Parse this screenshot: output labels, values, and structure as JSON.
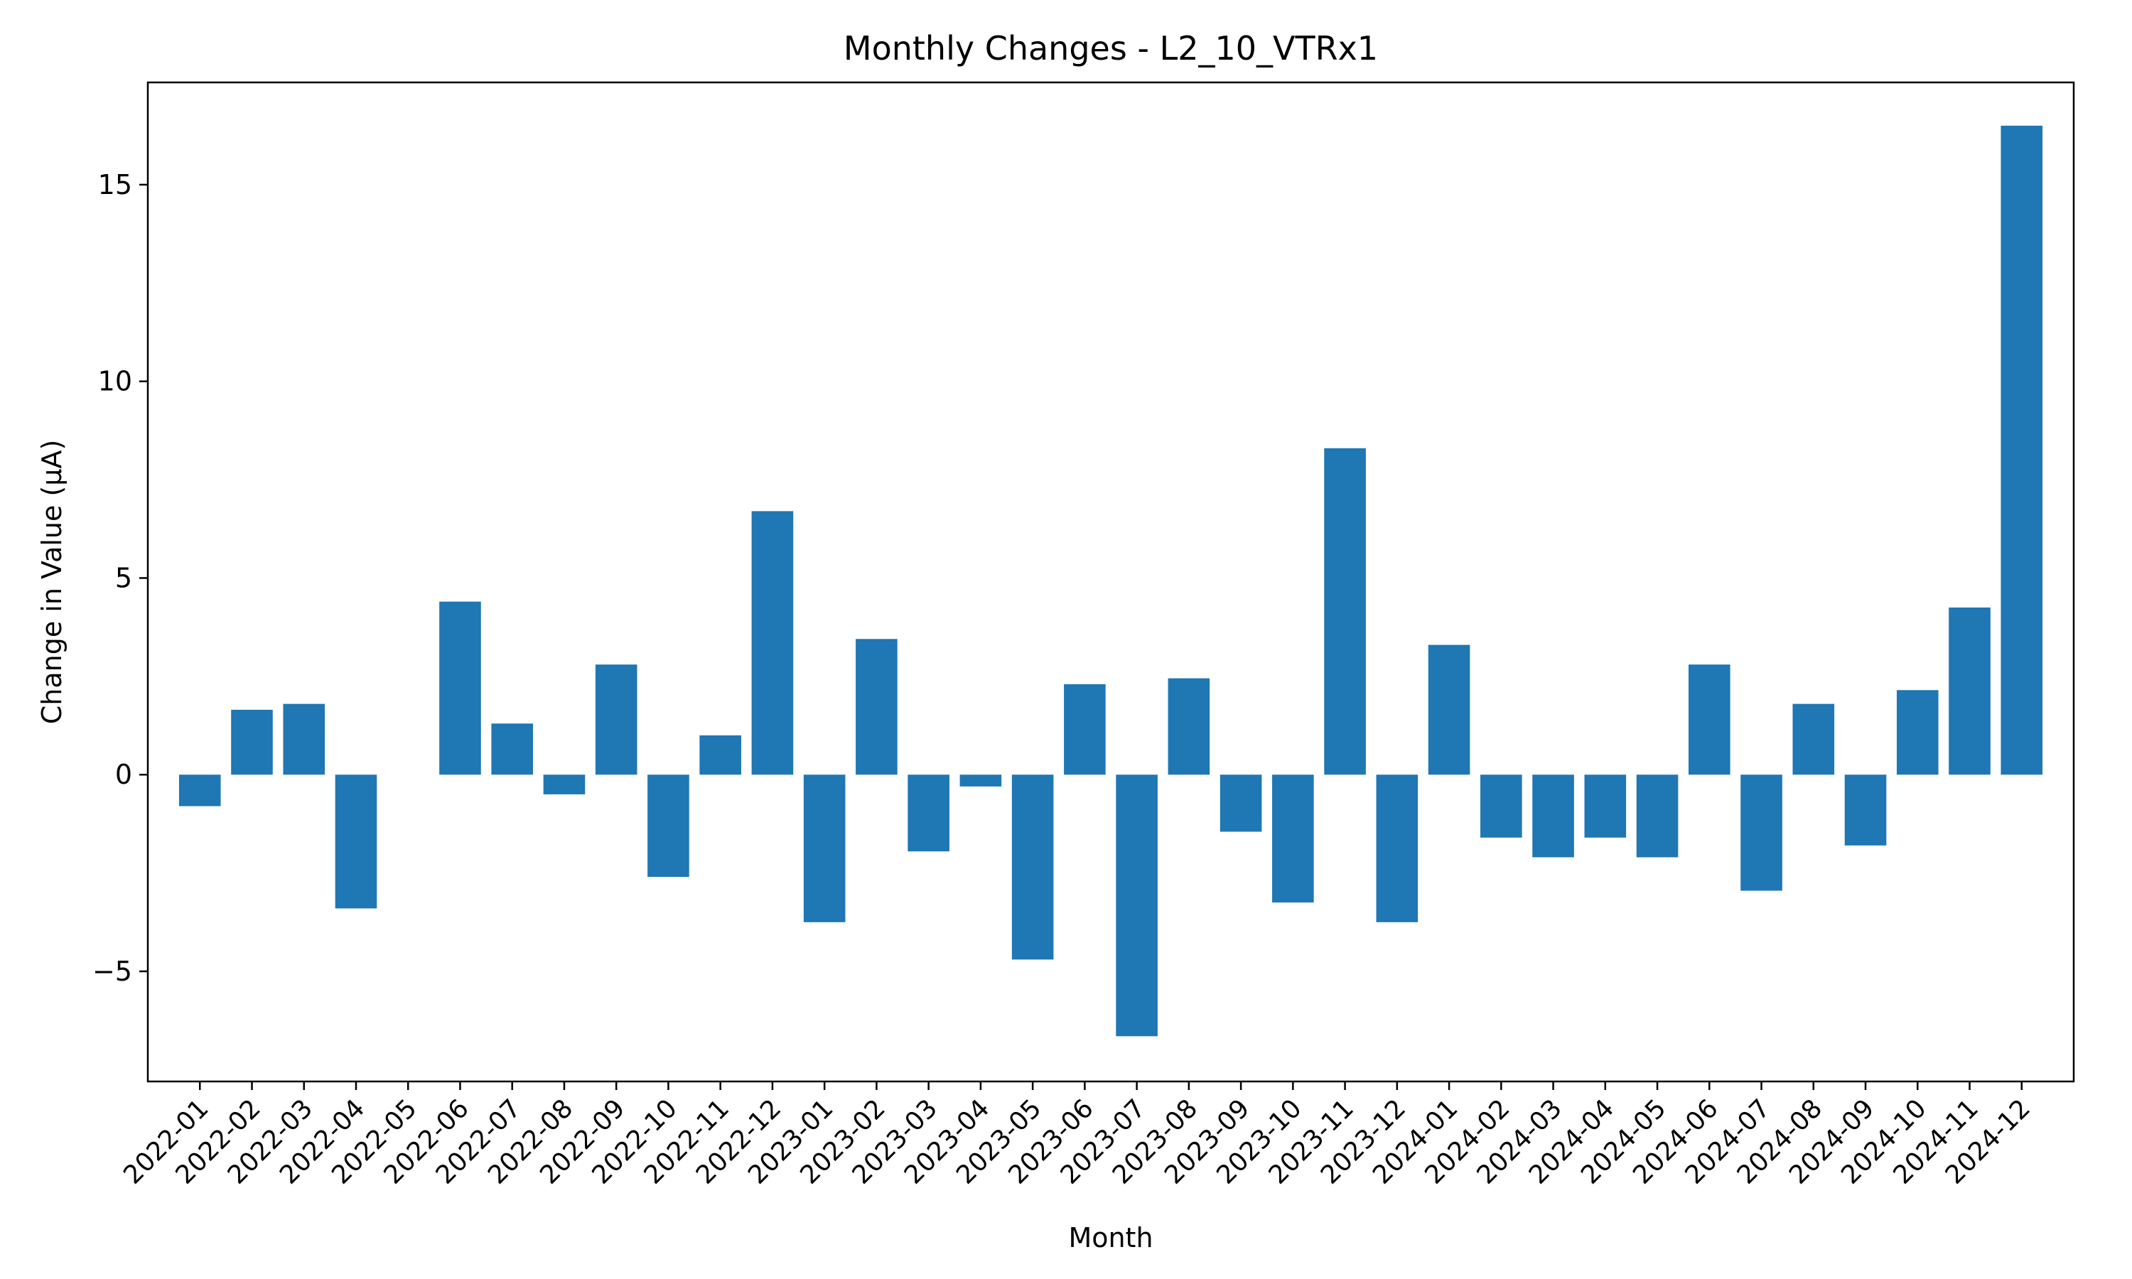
{
  "chart_data": {
    "type": "bar",
    "title": "Monthly Changes - L2_10_VTRx1",
    "xlabel": "Month",
    "ylabel": "Change in Value (μA)",
    "ylim": [
      -7.8,
      17.6
    ],
    "yticks": [
      -5,
      0,
      5,
      10,
      15
    ],
    "ytick_labels": [
      "−5",
      "0",
      "5",
      "10",
      "15"
    ],
    "grid": false,
    "legend": "none",
    "bar_color": "#1f77b4",
    "categories": [
      "2022-01",
      "2022-02",
      "2022-03",
      "2022-04",
      "2022-05",
      "2022-06",
      "2022-07",
      "2022-08",
      "2022-09",
      "2022-10",
      "2022-11",
      "2022-12",
      "2023-01",
      "2023-02",
      "2023-03",
      "2023-04",
      "2023-05",
      "2023-06",
      "2023-07",
      "2023-08",
      "2023-09",
      "2023-10",
      "2023-11",
      "2023-12",
      "2024-01",
      "2024-02",
      "2024-03",
      "2024-04",
      "2024-05",
      "2024-06",
      "2024-07",
      "2024-08",
      "2024-09",
      "2024-10",
      "2024-11",
      "2024-12"
    ],
    "values": [
      -0.8,
      1.65,
      1.8,
      -3.4,
      0,
      4.4,
      1.3,
      -0.5,
      2.8,
      -2.6,
      1.0,
      6.7,
      -3.75,
      3.45,
      -1.95,
      -0.3,
      -4.7,
      2.3,
      -6.65,
      2.45,
      -1.45,
      -3.25,
      8.3,
      -3.75,
      3.3,
      -1.6,
      -2.1,
      -1.6,
      -2.1,
      2.8,
      -2.95,
      1.8,
      -1.8,
      2.15,
      4.25,
      16.5
    ]
  }
}
